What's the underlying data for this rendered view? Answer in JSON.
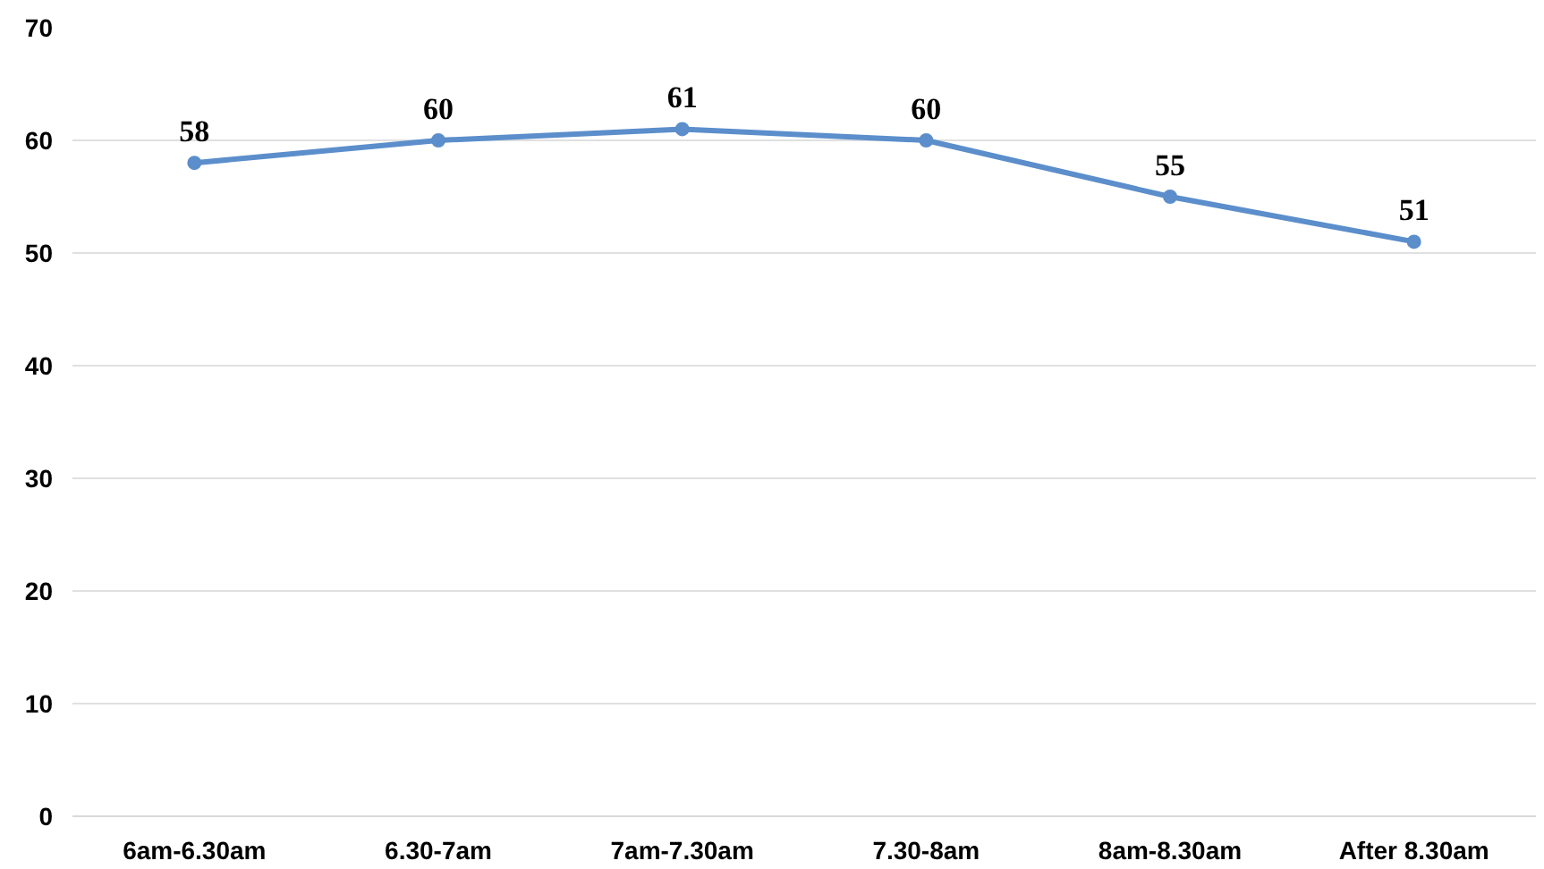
{
  "chart_data": {
    "type": "line",
    "categories": [
      "6am-6.30am",
      "6.30-7am",
      "7am-7.30am",
      "7.30-8am",
      "8am-8.30am",
      "After 8.30am"
    ],
    "series": [
      {
        "color": "#5b8ecb",
        "values": [
          58,
          60,
          61,
          60,
          55,
          51
        ]
      }
    ],
    "ylim": [
      0,
      70
    ],
    "yticks": [
      0,
      10,
      20,
      30,
      40,
      50,
      60,
      70
    ],
    "grid": "y",
    "marker": "circle",
    "line_style": "solid",
    "data_labels": true
  }
}
